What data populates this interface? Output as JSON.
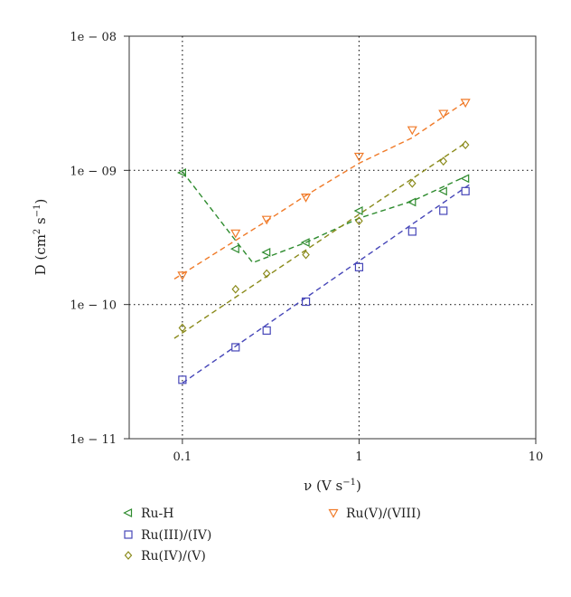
{
  "chart_data": {
    "type": "scatter",
    "xscale": "log",
    "yscale": "log",
    "xlim": [
      0.05,
      10
    ],
    "ylim": [
      1e-11,
      1e-08
    ],
    "xticks": [
      {
        "value": 0.1,
        "label": "0.1"
      },
      {
        "value": 1,
        "label": "1"
      },
      {
        "value": 10,
        "label": "10"
      }
    ],
    "yticks": [
      {
        "value": 1e-08,
        "label": "1e − 08"
      },
      {
        "value": 1e-09,
        "label": "1e − 09"
      },
      {
        "value": 1e-10,
        "label": "1e − 10"
      },
      {
        "value": 1e-11,
        "label": "1e − 11"
      }
    ],
    "xlabel": {
      "main": "ν (V s",
      "sup": "−1",
      "tail": ")"
    },
    "ylabel": {
      "main": "D (cm",
      "sup1": "2",
      "mid": " s",
      "sup2": "−1",
      "tail": ")"
    },
    "reference_lines": {
      "x": [
        0.1,
        1
      ],
      "y": [
        1e-09,
        1e-10
      ],
      "style": "dotted"
    },
    "legend_position": "bottom",
    "series": [
      {
        "name": "Ru-H",
        "color": "#2e8b2e",
        "marker": "triangle-left",
        "x": [
          0.1,
          0.2,
          0.3,
          0.5,
          1,
          2,
          3,
          4
        ],
        "y": [
          9.6e-10,
          2.6e-10,
          2.45e-10,
          2.9e-10,
          5e-10,
          5.8e-10,
          7e-10,
          8.7e-10
        ],
        "fit_x": [
          0.1,
          0.25,
          0.5,
          1,
          2,
          4
        ],
        "fit_y": [
          9.8e-10,
          2.05e-10,
          2.9e-10,
          4.4e-10,
          5.9e-10,
          9e-10
        ]
      },
      {
        "name": "Ru(III)/(IV)",
        "color": "#4646b8",
        "marker": "square",
        "x": [
          0.1,
          0.2,
          0.3,
          0.5,
          1,
          2,
          3,
          4
        ],
        "y": [
          2.75e-11,
          4.8e-11,
          6.4e-11,
          1.05e-10,
          1.9e-10,
          3.5e-10,
          5e-10,
          7e-10
        ],
        "fit_x": [
          0.1,
          4.2
        ],
        "fit_y": [
          2.6e-11,
          7.8e-10
        ]
      },
      {
        "name": "Ru(IV)/(V)",
        "color": "#8a8a1a",
        "marker": "diamond",
        "x": [
          0.1,
          0.2,
          0.3,
          0.5,
          1,
          2,
          3,
          4
        ],
        "y": [
          6.7e-11,
          1.3e-10,
          1.7e-10,
          2.35e-10,
          4.2e-10,
          8e-10,
          1.17e-09,
          1.55e-09
        ],
        "fit_x": [
          0.09,
          4
        ],
        "fit_y": [
          5.6e-11,
          1.6e-09
        ]
      },
      {
        "name": "Ru(V)/(VIII)",
        "color": "#f07a28",
        "marker": "triangle-down",
        "x": [
          0.1,
          0.2,
          0.3,
          0.5,
          1,
          2,
          3,
          4
        ],
        "y": [
          1.65e-10,
          3.4e-10,
          4.3e-10,
          6.3e-10,
          1.27e-09,
          2e-09,
          2.65e-09,
          3.2e-09
        ],
        "fit_x": [
          0.09,
          0.3,
          0.5,
          1,
          2,
          4
        ],
        "fit_y": [
          1.55e-10,
          4.2e-10,
          6.5e-10,
          1.13e-09,
          1.75e-09,
          3.25e-09
        ]
      }
    ]
  }
}
